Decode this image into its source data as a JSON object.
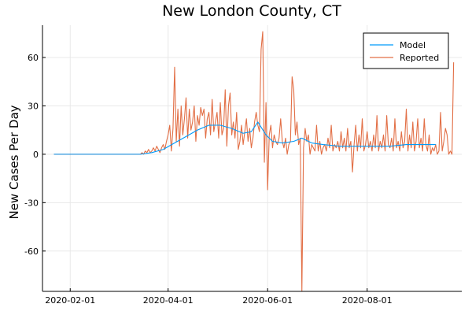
{
  "chart_data": {
    "type": "line",
    "title": "New London County, CT",
    "xlabel": "",
    "ylabel": "New Cases Per Day",
    "x_start": "2020-01-22",
    "x_range": [
      "2020-01-15",
      "2020-09-28"
    ],
    "x_ticks": [
      "2020-02-01",
      "2020-04-01",
      "2020-06-01",
      "2020-08-01"
    ],
    "ylim": [
      -85,
      80
    ],
    "y_ticks": [
      60,
      30,
      0,
      -30,
      -60
    ],
    "grid": true,
    "legend_position": "top-right",
    "series": [
      {
        "name": "Model",
        "color": "#009AFA",
        "points": [
          [
            "2020-01-22",
            0
          ],
          [
            "2020-03-15",
            0
          ],
          [
            "2020-03-22",
            1
          ],
          [
            "2020-03-29",
            3
          ],
          [
            "2020-04-05",
            7
          ],
          [
            "2020-04-12",
            11
          ],
          [
            "2020-04-19",
            15
          ],
          [
            "2020-04-26",
            18
          ],
          [
            "2020-05-03",
            18
          ],
          [
            "2020-05-10",
            16
          ],
          [
            "2020-05-17",
            13
          ],
          [
            "2020-05-22",
            14
          ],
          [
            "2020-05-26",
            20
          ],
          [
            "2020-05-31",
            12
          ],
          [
            "2020-06-04",
            8
          ],
          [
            "2020-06-10",
            7
          ],
          [
            "2020-06-17",
            8
          ],
          [
            "2020-06-22",
            10
          ],
          [
            "2020-06-28",
            7
          ],
          [
            "2020-07-05",
            6
          ],
          [
            "2020-07-15",
            5
          ],
          [
            "2020-07-25",
            5
          ],
          [
            "2020-08-05",
            5
          ],
          [
            "2020-08-15",
            5
          ],
          [
            "2020-08-25",
            6
          ],
          [
            "2020-09-05",
            6
          ],
          [
            "2020-09-12",
            6
          ]
        ]
      },
      {
        "name": "Reported",
        "color": "#E26F46",
        "points": [
          [
            "2020-01-22",
            0
          ],
          [
            "2020-03-15",
            0
          ],
          [
            "2020-03-16",
            1
          ],
          [
            "2020-03-17",
            0
          ],
          [
            "2020-03-18",
            2
          ],
          [
            "2020-03-19",
            1
          ],
          [
            "2020-03-20",
            3
          ],
          [
            "2020-03-21",
            1
          ],
          [
            "2020-03-22",
            2
          ],
          [
            "2020-03-23",
            4
          ],
          [
            "2020-03-24",
            2
          ],
          [
            "2020-03-25",
            5
          ],
          [
            "2020-03-26",
            3
          ],
          [
            "2020-03-27",
            1
          ],
          [
            "2020-03-28",
            4
          ],
          [
            "2020-03-29",
            6
          ],
          [
            "2020-03-30",
            3
          ],
          [
            "2020-03-31",
            8
          ],
          [
            "2020-04-01",
            12
          ],
          [
            "2020-04-02",
            18
          ],
          [
            "2020-04-03",
            2
          ],
          [
            "2020-04-04",
            16
          ],
          [
            "2020-04-05",
            54
          ],
          [
            "2020-04-06",
            8
          ],
          [
            "2020-04-07",
            28
          ],
          [
            "2020-04-08",
            5
          ],
          [
            "2020-04-09",
            30
          ],
          [
            "2020-04-10",
            12
          ],
          [
            "2020-04-11",
            22
          ],
          [
            "2020-04-12",
            35
          ],
          [
            "2020-04-13",
            10
          ],
          [
            "2020-04-14",
            28
          ],
          [
            "2020-04-15",
            15
          ],
          [
            "2020-04-16",
            20
          ],
          [
            "2020-04-17",
            30
          ],
          [
            "2020-04-18",
            8
          ],
          [
            "2020-04-19",
            24
          ],
          [
            "2020-04-20",
            18
          ],
          [
            "2020-04-21",
            29
          ],
          [
            "2020-04-22",
            24
          ],
          [
            "2020-04-23",
            28
          ],
          [
            "2020-04-24",
            10
          ],
          [
            "2020-04-25",
            22
          ],
          [
            "2020-04-26",
            26
          ],
          [
            "2020-04-27",
            12
          ],
          [
            "2020-04-28",
            34
          ],
          [
            "2020-04-29",
            14
          ],
          [
            "2020-04-30",
            20
          ],
          [
            "2020-05-01",
            26
          ],
          [
            "2020-05-02",
            10
          ],
          [
            "2020-05-03",
            32
          ],
          [
            "2020-05-04",
            12
          ],
          [
            "2020-05-05",
            16
          ],
          [
            "2020-05-06",
            40
          ],
          [
            "2020-05-07",
            5
          ],
          [
            "2020-05-08",
            30
          ],
          [
            "2020-05-09",
            38
          ],
          [
            "2020-05-10",
            12
          ],
          [
            "2020-05-11",
            20
          ],
          [
            "2020-05-12",
            10
          ],
          [
            "2020-05-13",
            26
          ],
          [
            "2020-05-14",
            3
          ],
          [
            "2020-05-15",
            8
          ],
          [
            "2020-05-16",
            18
          ],
          [
            "2020-05-17",
            6
          ],
          [
            "2020-05-18",
            14
          ],
          [
            "2020-05-19",
            22
          ],
          [
            "2020-05-20",
            8
          ],
          [
            "2020-05-21",
            16
          ],
          [
            "2020-05-22",
            4
          ],
          [
            "2020-05-23",
            10
          ],
          [
            "2020-05-24",
            20
          ],
          [
            "2020-05-25",
            26
          ],
          [
            "2020-05-26",
            18
          ],
          [
            "2020-05-27",
            14
          ],
          [
            "2020-05-28",
            65
          ],
          [
            "2020-05-29",
            76
          ],
          [
            "2020-05-30",
            -5
          ],
          [
            "2020-05-31",
            32
          ],
          [
            "2020-06-01",
            -22
          ],
          [
            "2020-06-02",
            12
          ],
          [
            "2020-06-03",
            18
          ],
          [
            "2020-06-04",
            4
          ],
          [
            "2020-06-05",
            12
          ],
          [
            "2020-06-06",
            8
          ],
          [
            "2020-06-07",
            6
          ],
          [
            "2020-06-08",
            10
          ],
          [
            "2020-06-09",
            22
          ],
          [
            "2020-06-10",
            8
          ],
          [
            "2020-06-11",
            4
          ],
          [
            "2020-06-12",
            10
          ],
          [
            "2020-06-13",
            0
          ],
          [
            "2020-06-14",
            6
          ],
          [
            "2020-06-15",
            8
          ],
          [
            "2020-06-16",
            48
          ],
          [
            "2020-06-17",
            40
          ],
          [
            "2020-06-18",
            12
          ],
          [
            "2020-06-19",
            20
          ],
          [
            "2020-06-20",
            6
          ],
          [
            "2020-06-21",
            10
          ],
          [
            "2020-06-22",
            -85
          ],
          [
            "2020-06-23",
            4
          ],
          [
            "2020-06-24",
            16
          ],
          [
            "2020-06-25",
            8
          ],
          [
            "2020-06-26",
            12
          ],
          [
            "2020-06-27",
            0
          ],
          [
            "2020-06-28",
            6
          ],
          [
            "2020-06-29",
            4
          ],
          [
            "2020-06-30",
            2
          ],
          [
            "2020-07-01",
            18
          ],
          [
            "2020-07-02",
            2
          ],
          [
            "2020-07-03",
            8
          ],
          [
            "2020-07-04",
            0
          ],
          [
            "2020-07-05",
            4
          ],
          [
            "2020-07-06",
            6
          ],
          [
            "2020-07-07",
            2
          ],
          [
            "2020-07-08",
            10
          ],
          [
            "2020-07-09",
            4
          ],
          [
            "2020-07-10",
            18
          ],
          [
            "2020-07-11",
            2
          ],
          [
            "2020-07-12",
            6
          ],
          [
            "2020-07-13",
            4
          ],
          [
            "2020-07-14",
            8
          ],
          [
            "2020-07-15",
            2
          ],
          [
            "2020-07-16",
            14
          ],
          [
            "2020-07-17",
            4
          ],
          [
            "2020-07-18",
            10
          ],
          [
            "2020-07-19",
            2
          ],
          [
            "2020-07-20",
            16
          ],
          [
            "2020-07-21",
            4
          ],
          [
            "2020-07-22",
            8
          ],
          [
            "2020-07-23",
            -11
          ],
          [
            "2020-07-24",
            6
          ],
          [
            "2020-07-25",
            18
          ],
          [
            "2020-07-26",
            2
          ],
          [
            "2020-07-27",
            12
          ],
          [
            "2020-07-28",
            4
          ],
          [
            "2020-07-29",
            22
          ],
          [
            "2020-07-30",
            2
          ],
          [
            "2020-07-31",
            6
          ],
          [
            "2020-08-01",
            14
          ],
          [
            "2020-08-02",
            4
          ],
          [
            "2020-08-03",
            8
          ],
          [
            "2020-08-04",
            2
          ],
          [
            "2020-08-05",
            12
          ],
          [
            "2020-08-06",
            4
          ],
          [
            "2020-08-07",
            24
          ],
          [
            "2020-08-08",
            2
          ],
          [
            "2020-08-09",
            8
          ],
          [
            "2020-08-10",
            4
          ],
          [
            "2020-08-11",
            12
          ],
          [
            "2020-08-12",
            2
          ],
          [
            "2020-08-13",
            24
          ],
          [
            "2020-08-14",
            6
          ],
          [
            "2020-08-15",
            4
          ],
          [
            "2020-08-16",
            10
          ],
          [
            "2020-08-17",
            2
          ],
          [
            "2020-08-18",
            22
          ],
          [
            "2020-08-19",
            4
          ],
          [
            "2020-08-20",
            8
          ],
          [
            "2020-08-21",
            2
          ],
          [
            "2020-08-22",
            14
          ],
          [
            "2020-08-23",
            4
          ],
          [
            "2020-08-24",
            8
          ],
          [
            "2020-08-25",
            28
          ],
          [
            "2020-08-26",
            2
          ],
          [
            "2020-08-27",
            12
          ],
          [
            "2020-08-28",
            4
          ],
          [
            "2020-08-29",
            20
          ],
          [
            "2020-08-30",
            2
          ],
          [
            "2020-08-31",
            8
          ],
          [
            "2020-09-01",
            22
          ],
          [
            "2020-09-02",
            4
          ],
          [
            "2020-09-03",
            10
          ],
          [
            "2020-09-04",
            2
          ],
          [
            "2020-09-05",
            22
          ],
          [
            "2020-09-06",
            6
          ],
          [
            "2020-09-07",
            2
          ],
          [
            "2020-09-08",
            12
          ],
          [
            "2020-09-09",
            0
          ],
          [
            "2020-09-10",
            4
          ],
          [
            "2020-09-11",
            2
          ],
          [
            "2020-09-12",
            6
          ],
          [
            "2020-09-13",
            0
          ],
          [
            "2020-09-14",
            2
          ],
          [
            "2020-09-15",
            26
          ],
          [
            "2020-09-16",
            2
          ],
          [
            "2020-09-17",
            8
          ],
          [
            "2020-09-18",
            16
          ],
          [
            "2020-09-19",
            12
          ],
          [
            "2020-09-20",
            0
          ],
          [
            "2020-09-21",
            2
          ],
          [
            "2020-09-22",
            0
          ],
          [
            "2020-09-23",
            57
          ]
        ]
      }
    ]
  }
}
